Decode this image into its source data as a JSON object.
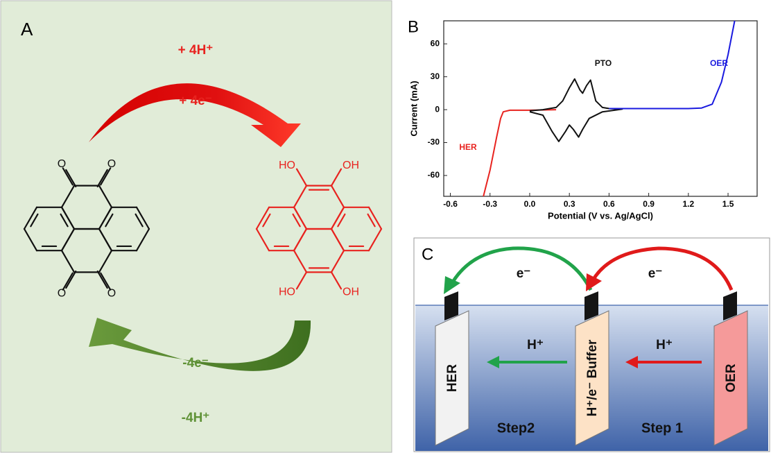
{
  "panel_a": {
    "label": "A",
    "top_labels": [
      "+ 4H⁺",
      "+ 4e⁻"
    ],
    "bottom_labels": [
      "-4e⁻",
      "-4H⁺"
    ],
    "reactant_atoms": [
      "O",
      "O",
      "O",
      "O"
    ],
    "product_atoms": [
      "HO",
      "OH",
      "HO",
      "OH"
    ]
  },
  "chart_data": {
    "type": "line",
    "label": "B",
    "xlabel": "Potential (V vs. Ag/AgCl)",
    "ylabel": "Current (mA)",
    "xlim": [
      -0.65,
      1.72
    ],
    "ylim": [
      -79,
      81
    ],
    "xticks": [
      -0.6,
      -0.3,
      {
        "value": 0,
        "label": "0.0"
      },
      0.3,
      0.6,
      0.9,
      1.2,
      1.5
    ],
    "yticks": [
      -60,
      -30,
      0,
      30,
      60
    ],
    "series": [
      {
        "name": "HER",
        "color": "#e8231f",
        "x": [
          -0.35,
          -0.3,
          -0.25,
          -0.22,
          -0.2,
          -0.15,
          0,
          0.2
        ],
        "values": [
          -79,
          -55,
          -25,
          -8,
          -2,
          -0.5,
          -0.5,
          0
        ]
      },
      {
        "name": "PTO",
        "color": "#111111",
        "x": [
          0,
          0.1,
          0.2,
          0.25,
          0.3,
          0.34,
          0.38,
          0.4,
          0.43,
          0.46,
          0.5,
          0.55,
          0.6,
          0.7,
          0.55,
          0.45,
          0.4,
          0.37,
          0.33,
          0.3,
          0.27,
          0.22,
          0.17,
          0.1,
          0
        ],
        "values": [
          -1,
          0,
          2,
          8,
          20,
          28,
          18,
          15,
          22,
          27,
          8,
          2,
          1,
          0.5,
          -2,
          -8,
          -18,
          -25,
          -18,
          -14,
          -20,
          -29,
          -20,
          -5,
          -2
        ]
      },
      {
        "name": "OER",
        "color": "#1a1adf",
        "x": [
          0.6,
          0.9,
          1.2,
          1.3,
          1.38,
          1.45,
          1.5,
          1.55
        ],
        "values": [
          1,
          1,
          1,
          1.5,
          5,
          25,
          50,
          81
        ]
      }
    ]
  },
  "panel_c": {
    "label": "C",
    "electrons": [
      "e⁻",
      "e⁻"
    ],
    "protons": [
      "H⁺",
      "H⁺"
    ],
    "electrodes": [
      "HER",
      "H⁺/e⁻ Buffer",
      "OER"
    ],
    "steps": [
      "Step2",
      "Step 1"
    ]
  }
}
